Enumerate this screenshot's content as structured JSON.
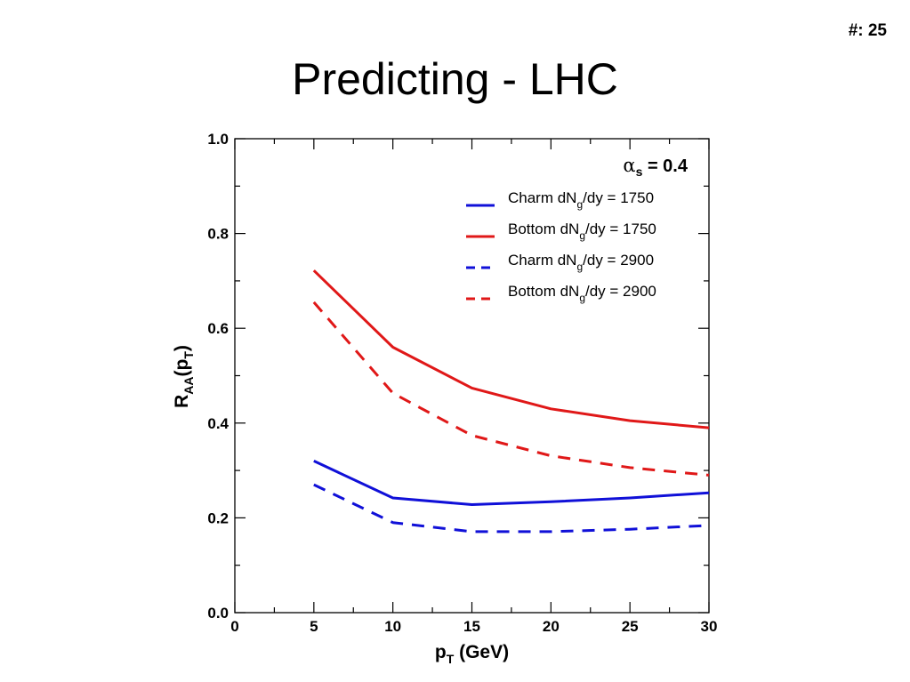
{
  "slide": {
    "number_label": "#: 25",
    "title": "Predicting - LHC"
  },
  "chart_data": {
    "type": "line",
    "xlabel": {
      "main": "p",
      "sub": "T",
      "rest": " (GeV)"
    },
    "ylabel": {
      "main": "R",
      "sub": "AA",
      "mid": "(p",
      "sub2": "T",
      "close": ")"
    },
    "xlim": [
      0,
      30
    ],
    "ylim": [
      0.0,
      1.0
    ],
    "xticks": [
      0,
      5,
      10,
      15,
      20,
      25,
      30
    ],
    "xtick_labels": [
      "0",
      "5",
      "10",
      "15",
      "20",
      "25",
      "30"
    ],
    "yticks": [
      0.0,
      0.2,
      0.4,
      0.6,
      0.8,
      1.0
    ],
    "ytick_labels": [
      "0.0",
      "0.2",
      "0.4",
      "0.6",
      "0.8",
      "1.0"
    ],
    "grid": false,
    "legend_position": "top-right",
    "annotation": {
      "symbol": "α",
      "sub": "s",
      "text": " = 0.4"
    },
    "series": [
      {
        "name": "Charm dN_g/dy = 1750",
        "label_parts": [
          "Charm dN",
          "g",
          "/dy = 1750"
        ],
        "color": "#1010d8",
        "dashed": false,
        "x": [
          5,
          10,
          15,
          20,
          25,
          30
        ],
        "y": [
          0.32,
          0.242,
          0.228,
          0.234,
          0.242,
          0.253
        ]
      },
      {
        "name": "Bottom dN_g/dy = 1750",
        "label_parts": [
          "Bottom dN",
          "g",
          "/dy = 1750"
        ],
        "color": "#e01818",
        "dashed": false,
        "x": [
          5,
          10,
          15,
          20,
          25,
          30
        ],
        "y": [
          0.722,
          0.56,
          0.474,
          0.43,
          0.405,
          0.39
        ]
      },
      {
        "name": "Charm dN_g/dy = 2900",
        "label_parts": [
          "Charm dN",
          "g",
          "/dy = 2900"
        ],
        "color": "#1010d8",
        "dashed": true,
        "x": [
          5,
          10,
          15,
          20,
          25,
          30
        ],
        "y": [
          0.27,
          0.19,
          0.171,
          0.171,
          0.176,
          0.184
        ]
      },
      {
        "name": "Bottom dN_g/dy = 2900",
        "label_parts": [
          "Bottom dN",
          "g",
          "/dy = 2900"
        ],
        "color": "#e01818",
        "dashed": true,
        "x": [
          5,
          10,
          15,
          20,
          25,
          30
        ],
        "y": [
          0.655,
          0.463,
          0.374,
          0.331,
          0.306,
          0.29
        ]
      }
    ]
  }
}
